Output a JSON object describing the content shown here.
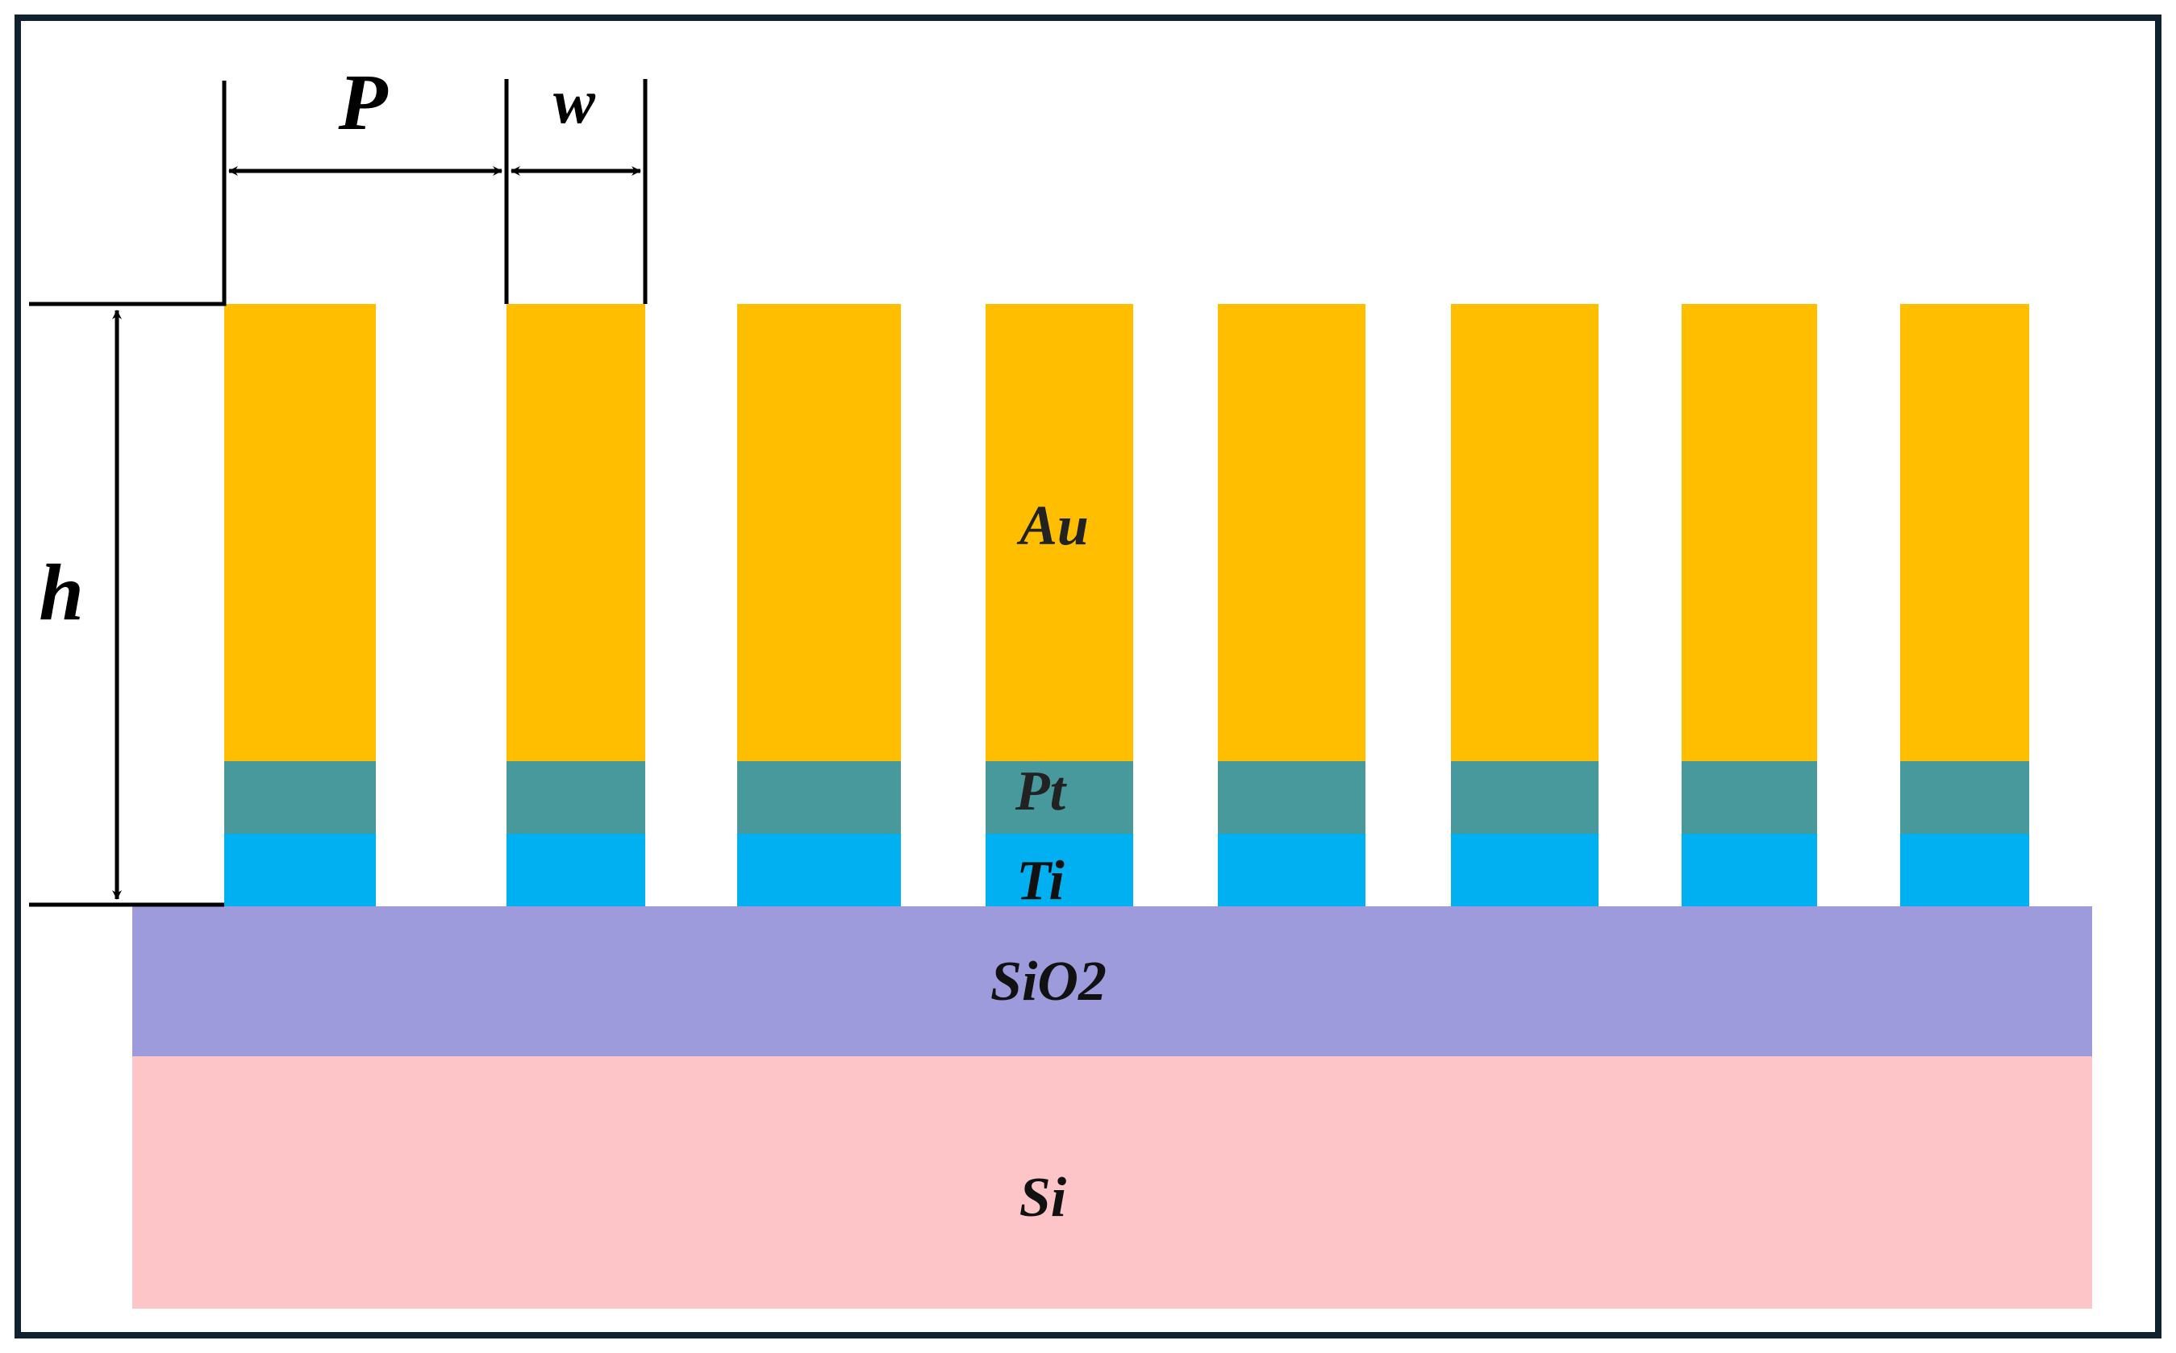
{
  "colors": {
    "frame": "#10222e",
    "Au": "#FFBF00",
    "Pt": "#48999C",
    "Ti": "#00B0F0",
    "SiO2": "#9E9BDD",
    "Si": "#FEC5C8",
    "dimension_lines": "#000000"
  },
  "layers": {
    "Au": "Au",
    "Pt": "Pt",
    "Ti": "Ti",
    "SiO2": "SiO2",
    "Si": "Si"
  },
  "dimensions": {
    "period": "P",
    "width": "w",
    "height": "h"
  },
  "grating": {
    "ridge_count": 8
  }
}
